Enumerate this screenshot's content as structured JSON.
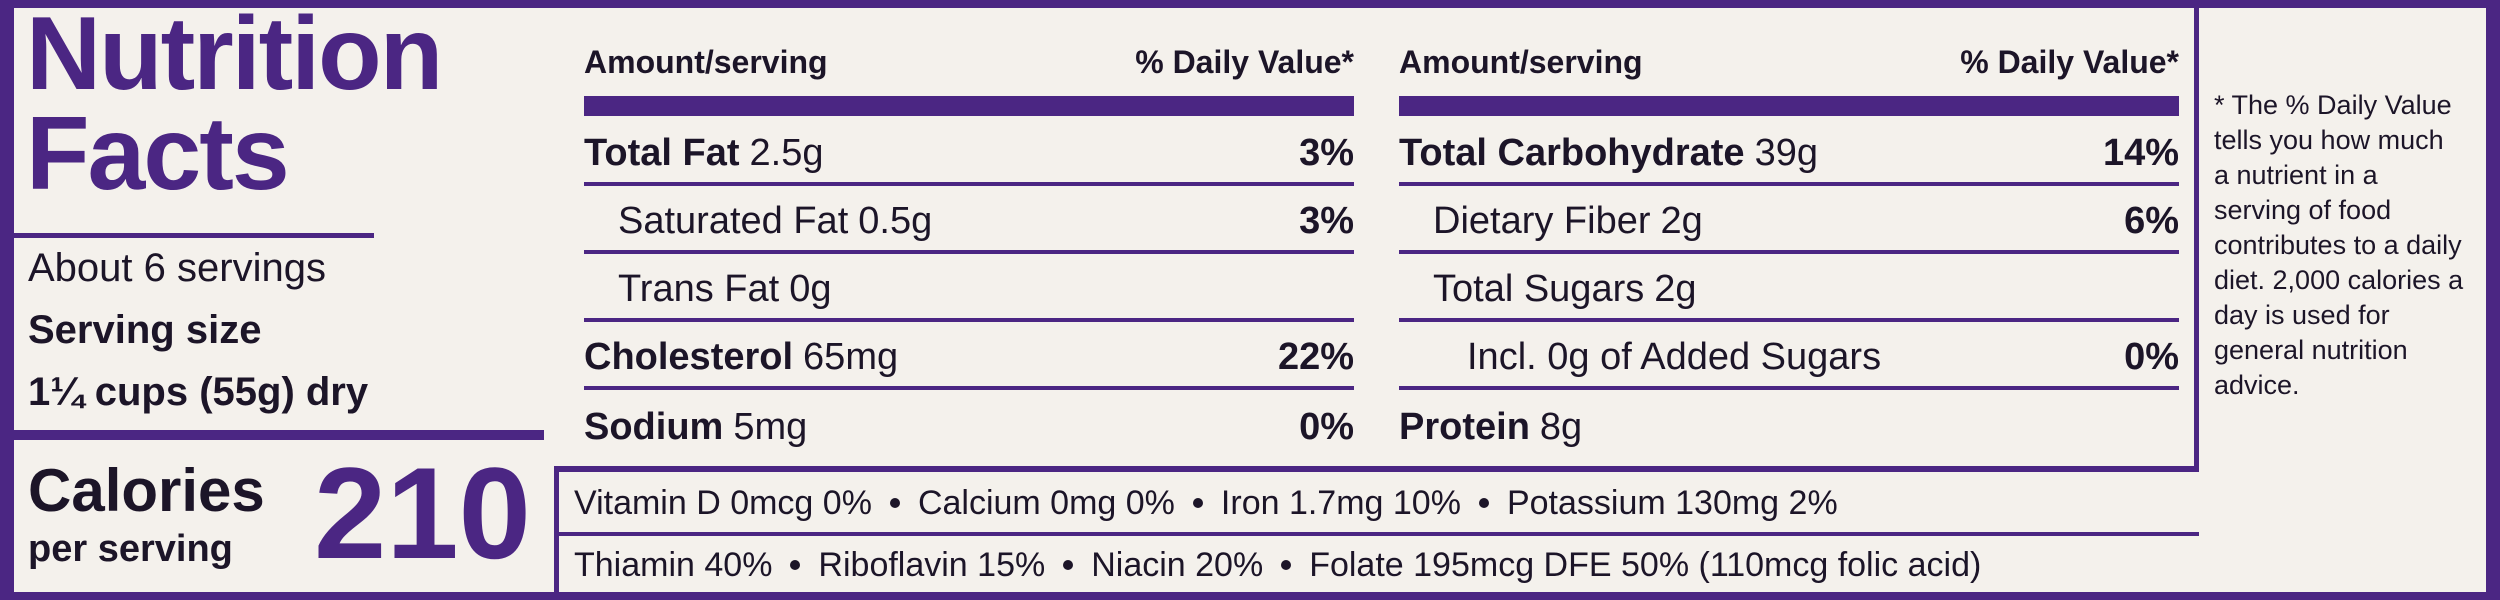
{
  "title": "Nutrition Facts",
  "servings": "About 6 servings",
  "serving_size_label": "Serving size",
  "serving_size": "1¼ cups (55g) dry",
  "calories_label": "Calories",
  "calories_sub": "per serving",
  "calories": 210,
  "columns": [
    {
      "header": {
        "amount": "Amount/serving",
        "dv": "% Daily Value*"
      },
      "rows": [
        {
          "name": "Total Fat",
          "amount": "2.5g",
          "dv": "3%",
          "sub": [
            {
              "name": "Saturated Fat",
              "amount": "0.5g",
              "dv": "3%"
            },
            {
              "name": "Trans Fat",
              "amount": "0g"
            }
          ]
        },
        {
          "name": "Cholesterol",
          "amount": "65mg",
          "dv": "22%"
        },
        {
          "name": "Sodium",
          "amount": "5mg",
          "dv": "0%"
        }
      ]
    },
    {
      "header": {
        "amount": "Amount/serving",
        "dv": "% Daily Value*"
      },
      "rows": [
        {
          "name": "Total Carbohydrate",
          "amount": "39g",
          "dv": "14%",
          "sub": [
            {
              "name": "Dietary Fiber",
              "amount": "2g",
              "dv": "6%"
            },
            {
              "name": "Total Sugars",
              "amount": "2g",
              "sub": [
                {
                  "name": "Incl. 0g of Added Sugars",
                  "dv": "0%"
                }
              ]
            }
          ]
        },
        {
          "name": "Protein",
          "amount": "8g"
        }
      ]
    }
  ],
  "vitamins": [
    [
      "Vitamin D 0mcg 0%",
      "Calcium 0mg 0%",
      "Iron 1.7mg 10%",
      "Potassium 130mg 2%"
    ],
    [
      "Thiamin 40%",
      "Riboflavin 15%",
      "Niacin 20%",
      "Folate 195mcg DFE 50% (110mcg folic acid)"
    ]
  ],
  "footnote": "* The % Daily Value tells you how much a nutrient in a serving of food contributes to a daily diet. 2,000 calories a day is used for general nutrition advice."
}
